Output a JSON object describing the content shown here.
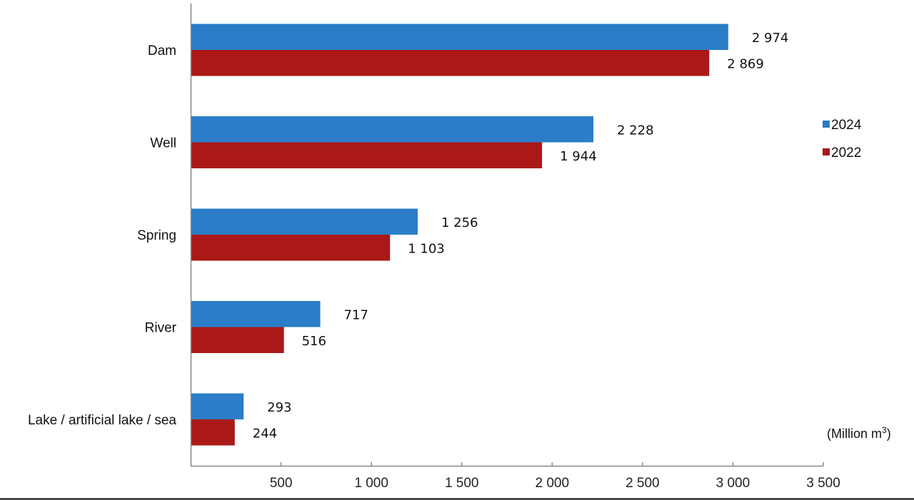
{
  "chart_data": {
    "type": "bar",
    "orientation": "horizontal",
    "categories": [
      "Dam",
      "Well",
      "Spring",
      "River",
      "Lake / artificial lake / sea"
    ],
    "series": [
      {
        "name": "2024",
        "color": "#2a7dc6",
        "values": [
          2974,
          2228,
          1256,
          717,
          293
        ],
        "labels": [
          "2 974",
          "2 228",
          "1 256",
          "717",
          "293"
        ]
      },
      {
        "name": "2022",
        "color": "#ab1818",
        "values": [
          2869,
          1944,
          1103,
          516,
          244
        ],
        "labels": [
          "2 869",
          "1 944",
          "1 103",
          "516",
          "244"
        ]
      }
    ],
    "xlim": [
      0,
      3500
    ],
    "xticks": [
      500,
      1000,
      1500,
      2000,
      2500,
      3000,
      3500
    ],
    "xtick_labels": [
      "500",
      "1 000",
      "1 500",
      "2 000",
      "2 500",
      "3 000",
      "3 500"
    ],
    "unit_label": "(Million m",
    "unit_superscript": "3",
    "unit_close": ")",
    "legend_placement": "right",
    "grid": false
  }
}
